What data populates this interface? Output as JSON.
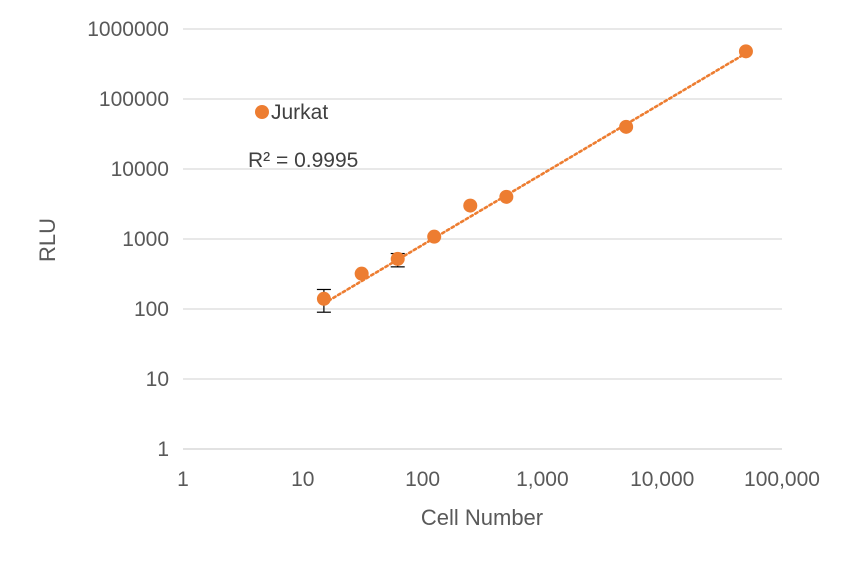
{
  "chart_data": {
    "type": "scatter",
    "xscale": "log",
    "yscale": "log",
    "xlim": [
      1,
      100000
    ],
    "ylim": [
      1,
      1000000
    ],
    "x_ticks": [
      1,
      10,
      100,
      1000,
      10000,
      100000
    ],
    "x_tick_labels": [
      "1",
      "10",
      "100",
      "1,000",
      "10,000",
      "100,000"
    ],
    "y_ticks": [
      1,
      10,
      100,
      1000,
      10000,
      100000,
      1000000
    ],
    "y_tick_labels": [
      "1",
      "10",
      "100",
      "1000",
      "10000",
      "100000",
      "1000000"
    ],
    "xlabel": "Cell Number",
    "ylabel": "RLU",
    "grid": "horizontal",
    "legend": {
      "label": "Jurkat",
      "placement": "top-left"
    },
    "r_squared_label": "R² = 0.9995",
    "point_color": "#ED7D31",
    "trendline": {
      "style": "dotted",
      "color": "#ED7D31",
      "from": [
        15,
        120
      ],
      "to": [
        50000,
        450000
      ]
    },
    "series": [
      {
        "name": "Jurkat",
        "x": [
          15,
          31,
          62,
          125,
          250,
          500,
          5000,
          50000
        ],
        "y": [
          140,
          320,
          520,
          1080,
          3000,
          4000,
          40000,
          480000
        ],
        "error_low": [
          90,
          null,
          400,
          null,
          null,
          null,
          null,
          null
        ],
        "error_high": [
          190,
          null,
          620,
          null,
          null,
          null,
          null,
          null
        ]
      }
    ]
  }
}
